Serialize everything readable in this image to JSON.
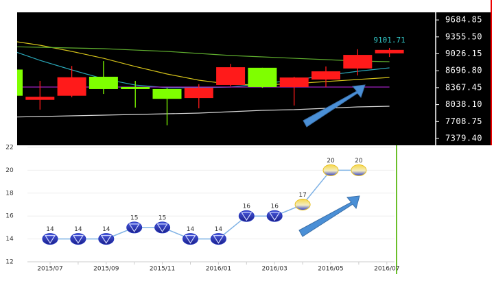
{
  "chart_data": [
    {
      "type": "candlestick",
      "open": [
        8720,
        8130,
        8210,
        8580,
        8380,
        8340,
        8165,
        8420,
        8755,
        8380,
        8525,
        8740,
        9035
      ],
      "high": [
        8730,
        8500,
        8790,
        8885,
        8500,
        8365,
        8435,
        8830,
        8755,
        8580,
        8780,
        9115,
        9140
      ],
      "low": [
        8200,
        7940,
        8180,
        8245,
        7980,
        7635,
        7965,
        8395,
        8365,
        8020,
        8380,
        8605,
        8965
      ],
      "close": [
        8210,
        8190,
        8570,
        8340,
        8340,
        8150,
        8365,
        8765,
        8380,
        8565,
        8685,
        9005,
        9101.71
      ],
      "up_color": "#ff1a1a",
      "down_color": "#7fff00",
      "label_color": "#33cccc",
      "overlays": [
        {
          "color": "#2aa7b8",
          "values": [
            9113,
            8899,
            8713,
            8539,
            8419,
            8366,
            8366,
            8379,
            8446,
            8513,
            8606,
            8686,
            8753
          ]
        },
        {
          "color": "#d4c21a",
          "values": [
            9286,
            9193,
            9073,
            8939,
            8779,
            8633,
            8513,
            8433,
            8419,
            8446,
            8486,
            8526,
            8566
          ]
        },
        {
          "color": "#5fae2e",
          "values": [
            9166,
            9153,
            9140,
            9126,
            9099,
            9073,
            9033,
            8993,
            8966,
            8939,
            8913,
            8886,
            8873
          ]
        },
        {
          "color": "#a020c0",
          "values": [
            8379,
            8379,
            8379,
            8379,
            8379,
            8379,
            8379,
            8379,
            8379,
            8379,
            8379,
            8379,
            8379
          ]
        },
        {
          "color": "#d8d8d8",
          "values": [
            7793,
            7806,
            7819,
            7833,
            7846,
            7859,
            7873,
            7899,
            7926,
            7939,
            7966,
            7993,
            8006
          ]
        }
      ],
      "ylim": [
        7246,
        9833
      ],
      "yticks": [
        9684.85,
        {
          "value": 9355.5,
          "label": "9355.50"
        },
        9026.15,
        {
          "value": 8696.8,
          "label": "8696.80"
        },
        8367.45,
        {
          "value": 8038.1,
          "label": "8038.10"
        },
        7708.75,
        {
          "value": 7379.4,
          "label": "7379.40"
        }
      ]
    },
    {
      "type": "line",
      "categories": [
        "2015/07",
        null,
        "2015/09",
        null,
        "2015/11",
        null,
        "2016/01",
        null,
        "2016/03",
        null,
        "2016/05",
        null,
        "2016/07"
      ],
      "values": [
        14,
        14,
        14,
        15,
        15,
        14,
        14,
        16,
        16,
        17,
        20,
        20,
        null
      ],
      "color": "#7fb2e5",
      "point_colors": [
        "#2233bb",
        "#2233bb",
        "#2233bb",
        "#2233bb",
        "#2233bb",
        "#2233bb",
        "#2233bb",
        "#2233bb",
        "#2233bb",
        "#e8c020",
        "#e8c020",
        "#e8c020",
        null
      ],
      "ylim": [
        12,
        22
      ],
      "yticks": [
        12,
        14,
        16,
        18,
        20,
        22
      ],
      "grid": true
    }
  ]
}
